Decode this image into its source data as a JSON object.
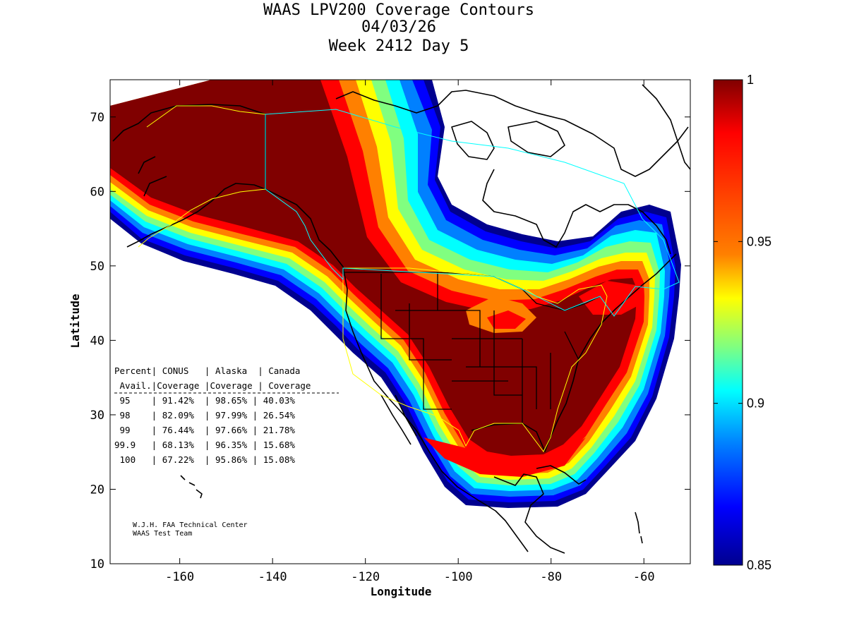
{
  "title_lines": [
    "WAAS LPV200 Coverage Contours",
    "04/03/26",
    "Week 2412 Day 5"
  ],
  "axes": {
    "xlabel": "Longitude",
    "ylabel": "Latitude",
    "xlim": [
      -175,
      -50
    ],
    "ylim": [
      10,
      75
    ],
    "xticks": [
      -160,
      -140,
      -120,
      -100,
      -80,
      -60
    ],
    "yticks": [
      10,
      20,
      30,
      40,
      50,
      60,
      70
    ]
  },
  "colorbar": {
    "range": [
      0.85,
      1
    ],
    "ticks": [
      "1",
      "0.95",
      "0.9",
      "0.85"
    ],
    "colormap": "jet",
    "colors_top_to_bottom": [
      "#800000",
      "#ff0000",
      "#ff8000",
      "#ffff00",
      "#80ff80",
      "#00ffff",
      "#0080ff",
      "#0000ff",
      "#00008f"
    ]
  },
  "table": {
    "header1": "Percent| CONUS   | Alaska  | Canada",
    "header2": " Avail.|Coverage |Coverage | Coverage",
    "rows": [
      " 95    | 91.42%  | 98.65% | 40.03%",
      " 98    | 82.09%  | 97.99% | 26.54%",
      " 99    | 76.44%  | 97.66% | 21.78%",
      "99.9   | 68.13%  | 96.35% | 15.68%",
      " 100   | 67.22%  | 95.86% | 15.08%"
    ]
  },
  "credit_lines": [
    "W.J.H. FAA Technical Center",
    "WAAS Test Team"
  ],
  "chart_data": {
    "type": "heatmap",
    "title": "WAAS LPV200 Coverage Contours",
    "subtitle": "04/03/26 Week 2412 Day 5",
    "xlabel": "Longitude",
    "ylabel": "Latitude",
    "xlim": [
      -175,
      -50
    ],
    "ylim": [
      10,
      75
    ],
    "value_range": [
      0.85,
      1
    ],
    "coverage_table": {
      "columns": [
        "Percent Avail.",
        "CONUS Coverage",
        "Alaska Coverage",
        "Canada Coverage"
      ],
      "rows": [
        [
          "95",
          "91.42%",
          "98.65%",
          "40.03%"
        ],
        [
          "98",
          "82.09%",
          "97.99%",
          "26.54%"
        ],
        [
          "99",
          "76.44%",
          "97.66%",
          "21.78%"
        ],
        [
          "99.9",
          "68.13%",
          "96.35%",
          "15.68%"
        ],
        [
          "100",
          "67.22%",
          "95.86%",
          "15.08%"
        ]
      ]
    }
  }
}
